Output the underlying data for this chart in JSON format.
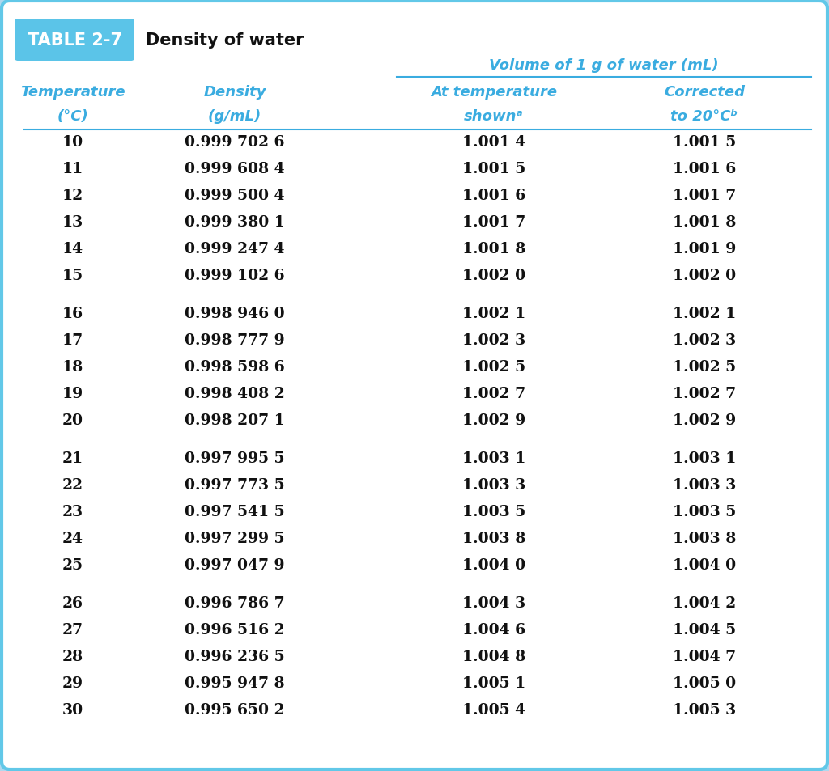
{
  "title_tag": "TABLE 2-7",
  "title_text": "Density of water",
  "span_header": "Volume of 1 g of water (mL)",
  "col_headers_line1": [
    "Temperature",
    "Density",
    "At temperature",
    "Corrected"
  ],
  "col_headers_line2": [
    "°C)",
    "(g/mL)",
    "shown",
    "to 20°C"
  ],
  "col_headers_line2_super": [
    "",
    "",
    "a",
    "b"
  ],
  "col_headers_paren1": [
    "(",
    "(",
    "",
    ""
  ],
  "rows": [
    [
      "10",
      "0.999 702 6",
      "1.001 4",
      "1.001 5"
    ],
    [
      "11",
      "0.999 608 4",
      "1.001 5",
      "1.001 6"
    ],
    [
      "12",
      "0.999 500 4",
      "1.001 6",
      "1.001 7"
    ],
    [
      "13",
      "0.999 380 1",
      "1.001 7",
      "1.001 8"
    ],
    [
      "14",
      "0.999 247 4",
      "1.001 8",
      "1.001 9"
    ],
    [
      "15",
      "0.999 102 6",
      "1.002 0",
      "1.002 0"
    ],
    [
      "16",
      "0.998 946 0",
      "1.002 1",
      "1.002 1"
    ],
    [
      "17",
      "0.998 777 9",
      "1.002 3",
      "1.002 3"
    ],
    [
      "18",
      "0.998 598 6",
      "1.002 5",
      "1.002 5"
    ],
    [
      "19",
      "0.998 408 2",
      "1.002 7",
      "1.002 7"
    ],
    [
      "20",
      "0.998 207 1",
      "1.002 9",
      "1.002 9"
    ],
    [
      "21",
      "0.997 995 5",
      "1.003 1",
      "1.003 1"
    ],
    [
      "22",
      "0.997 773 5",
      "1.003 3",
      "1.003 3"
    ],
    [
      "23",
      "0.997 541 5",
      "1.003 5",
      "1.003 5"
    ],
    [
      "24",
      "0.997 299 5",
      "1.003 8",
      "1.003 8"
    ],
    [
      "25",
      "0.997 047 9",
      "1.004 0",
      "1.004 0"
    ],
    [
      "26",
      "0.996 786 7",
      "1.004 3",
      "1.004 2"
    ],
    [
      "27",
      "0.996 516 2",
      "1.004 6",
      "1.004 5"
    ],
    [
      "28",
      "0.996 236 5",
      "1.004 8",
      "1.004 7"
    ],
    [
      "29",
      "0.995 947 8",
      "1.005 1",
      "1.005 0"
    ],
    [
      "30",
      "0.995 650 2",
      "1.005 4",
      "1.005 3"
    ]
  ],
  "group_separators": [
    6,
    11,
    16
  ],
  "bg_color": "#f5f5f0",
  "inner_bg": "#ffffff",
  "border_color": "#62c8e8",
  "header_color": "#3aace0",
  "tag_bg_color": "#5bc4e8",
  "tag_text_color": "#ffffff",
  "data_text_color": "#111111",
  "title_text_color": "#111111",
  "figsize": [
    10.24,
    9.54
  ],
  "dpi": 100
}
